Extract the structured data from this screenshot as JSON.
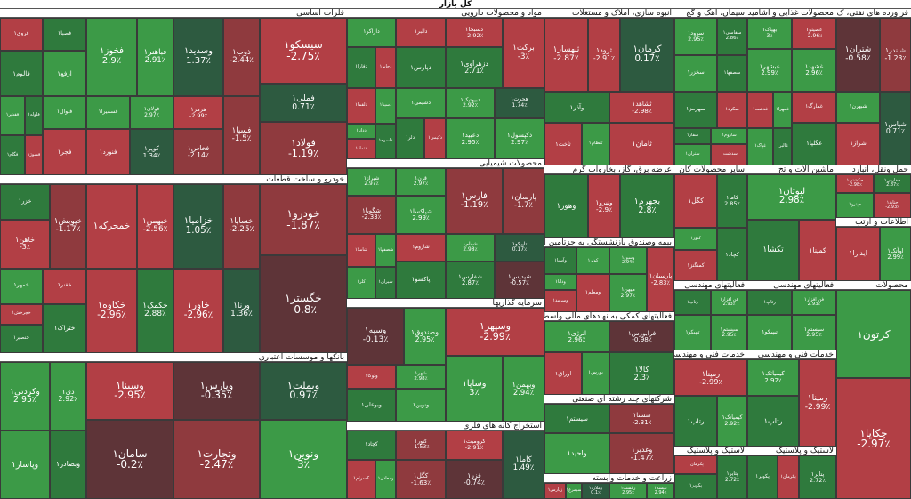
{
  "title": "کل بازار",
  "colors": {
    "neg3": "#5e3438",
    "neg2": "#8f3a3e",
    "neg1": "#b23f45",
    "pos1": "#3c9a47",
    "pos2": "#2f7a3d",
    "pos3": "#2d5a40",
    "bright_pos": "#35b64a",
    "neutral": "#555555",
    "header_bg": "#ffffff",
    "background": "#1c1c1c"
  },
  "chart_data": {
    "type": "treemap",
    "title": "کل بازار",
    "sectors": [
      {
        "name": "فلزات اساسی",
        "items": [
          {
            "n": "سیسکو۱",
            "v": -2.75
          },
          {
            "n": "فملی۱",
            "v": 0.71
          },
          {
            "n": "فولاد۱",
            "v": -1.19
          },
          {
            "n": "ذوب۱",
            "v": -2.44
          },
          {
            "n": "وسدید۱",
            "v": 1.37
          },
          {
            "n": "فسپا۱",
            "v": -1.5
          },
          {
            "n": "هرمز۱",
            "v": -2.99
          },
          {
            "n": "فخاس۱",
            "v": -2.14
          },
          {
            "n": "فباهنر۱",
            "v": 2.91
          },
          {
            "n": "فخوز۱",
            "v": 2.9
          },
          {
            "n": "فولای۱",
            "v": 2.97
          },
          {
            "n": "کویر۱",
            "v": 1.34
          },
          {
            "n": "فسمیرا۱"
          },
          {
            "n": "فنورد۱"
          },
          {
            "n": "فصبا۱"
          },
          {
            "n": "ارفع۱"
          },
          {
            "n": "فروی۱"
          },
          {
            "n": "فالوم۱"
          },
          {
            "n": "فنوال۱"
          },
          {
            "n": "فجر۱"
          },
          {
            "n": "فلوله۱"
          },
          {
            "n": "فقدیر۱"
          },
          {
            "n": "فسوژ۱"
          },
          {
            "n": "فگام۱"
          }
        ]
      },
      {
        "name": "مواد و محصولات دارویی",
        "items": [
          {
            "n": "برکت۱",
            "v": -3
          },
          {
            "n": "دسبحا۱",
            "v": -2.92
          },
          {
            "n": "دزهراوی۱",
            "v": 2.71
          },
          {
            "n": "هجرت۱",
            "v": 1.74
          },
          {
            "n": "دکپسول۱",
            "v": 2.97
          },
          {
            "n": "دبیوتیک۱",
            "v": 2.92
          },
          {
            "n": "دعبید۱",
            "v": 2.95
          },
          {
            "n": "دالبر۱"
          },
          {
            "n": "دپارس۱"
          },
          {
            "n": "داراکر۱"
          },
          {
            "n": "دجابر۱"
          },
          {
            "n": "دفارا۱"
          },
          {
            "n": "دشیمی۱"
          },
          {
            "n": "دکیمی۱"
          },
          {
            "n": "دلر۱"
          },
          {
            "n": "دسینا۱"
          },
          {
            "n": "دلقما۱"
          },
          {
            "n": "داسوه۱"
          },
          {
            "n": "ددانا۱"
          },
          {
            "n": "دتماد۱"
          }
        ]
      },
      {
        "name": "انبوه سازی، املاک و مستغلات",
        "items": [
          {
            "n": "کرمان۱",
            "v": 0.17
          },
          {
            "n": "ثرود۱",
            "v": -2.91
          },
          {
            "n": "ثبهساز۱",
            "v": -2.87
          },
          {
            "n": "ثشاهد۱",
            "v": -2.98
          },
          {
            "n": "ثامان۱"
          },
          {
            "n": "وآذر۱"
          },
          {
            "n": "ثنظام۱"
          },
          {
            "n": "ثاخت۱"
          }
        ]
      },
      {
        "name": "سیمان، آهک و گچ",
        "items": [
          {
            "n": "سفاسی۱",
            "v": 2.86
          },
          {
            "n": "سرود۱",
            "v": 2.95
          },
          {
            "n": "سصفها۱"
          },
          {
            "n": "سخزر۱"
          },
          {
            "n": "سکرد۱"
          },
          {
            "n": "سهرمز۱"
          },
          {
            "n": "ساروم۱"
          },
          {
            "n": "سدشت۱"
          },
          {
            "n": "سفار۱"
          },
          {
            "n": "ستران۱"
          }
        ]
      },
      {
        "name": "محصولات غذایی و آشامیدنی",
        "items": [
          {
            "n": "غصینو۱",
            "v": -2.96
          },
          {
            "n": "غشهد۱",
            "v": 2.96
          },
          {
            "n": "بهپاک۱",
            "v": 3
          },
          {
            "n": "غبشهر۱",
            "v": 2.99
          },
          {
            "n": "غمارگ۱"
          },
          {
            "n": "غگلپا۱"
          },
          {
            "n": "غمهرا۱"
          },
          {
            "n": "غدشت۱"
          },
          {
            "n": "غالبر۱"
          },
          {
            "n": "غپاک۱"
          }
        ]
      },
      {
        "name": "فراورده های نفتی، ک",
        "items": [
          {
            "n": "شبندر۱",
            "v": -1.23
          },
          {
            "n": "شتران۱",
            "v": -0.58
          },
          {
            "n": "شپاس۱",
            "v": 0.71
          },
          {
            "n": "شبهرن۱"
          },
          {
            "n": "شراز۱"
          }
        ]
      },
      {
        "name": "خودرو و ساخت قطعات",
        "items": [
          {
            "n": "خودرو۱",
            "v": -1.87
          },
          {
            "n": "خگستر۱",
            "v": -0.8
          },
          {
            "n": "خساپا۱",
            "v": -2.25
          },
          {
            "n": "خزامیا۱",
            "v": 1.05
          },
          {
            "n": "ورنا۱",
            "v": 1.36
          },
          {
            "n": "خاور۱",
            "v": -2.96
          },
          {
            "n": "خبهمن۱",
            "v": -2.56
          },
          {
            "n": "خمحرکه۱"
          },
          {
            "n": "خکمک۱",
            "v": 2.88
          },
          {
            "n": "خکاوه۱",
            "v": -2.96
          },
          {
            "n": "خپویش۱",
            "v": -1.17
          },
          {
            "n": "خزر۱"
          },
          {
            "n": "خاهن۱",
            "v": -3
          },
          {
            "n": "خفنر۱"
          },
          {
            "n": "ختراک۱"
          },
          {
            "n": "خمهر۱"
          },
          {
            "n": "خچرخش۱"
          },
          {
            "n": "خنصیر۱"
          }
        ]
      },
      {
        "name": "محصولات شیمیایی",
        "items": [
          {
            "n": "پارسان۱",
            "v": -1.7
          },
          {
            "n": "فارس۱",
            "v": -1.19
          },
          {
            "n": "تاپیکو۱",
            "v": 0.17
          },
          {
            "n": "شپدیس۱",
            "v": -0.57
          },
          {
            "n": "شفام۱",
            "v": 2.98
          },
          {
            "n": "شفارس۱",
            "v": 2.87
          },
          {
            "n": "قرن۱",
            "v": 2.97
          },
          {
            "n": "شپاکسا۱",
            "v": 2.99
          },
          {
            "n": "شیراز۱",
            "v": 2.97
          },
          {
            "n": "شگویا۱",
            "v": -2.33
          },
          {
            "n": "شاروم۱"
          },
          {
            "n": "پاکشو۱"
          },
          {
            "n": "شصفها۱"
          },
          {
            "n": "شاملا۱"
          },
          {
            "n": "شیران۱"
          },
          {
            "n": "کلر۱"
          }
        ]
      },
      {
        "name": "عرضه برق، گاز، بخاروآب گرم",
        "items": [
          {
            "n": "بجهرم۱",
            "v": 2.8
          },
          {
            "n": "ونیرو۱",
            "v": -2.9
          },
          {
            "n": "وهور۱"
          }
        ]
      },
      {
        "name": "سایر محصولات کان",
        "items": [
          {
            "n": "کاما۱",
            "v": 2.85
          },
          {
            "n": "کگل۱"
          },
          {
            "n": "کچاد۱"
          },
          {
            "n": "کنور۱"
          },
          {
            "n": "کمنگنز۱"
          }
        ]
      },
      {
        "name": "ماشین آلات و تج",
        "items": [
          {
            "n": "لبوتان۱",
            "v": 2.98
          },
          {
            "n": "کمینا۱"
          },
          {
            "n": "تکشا۱"
          }
        ]
      },
      {
        "name": "حمل ونقل، انبارد",
        "items": [
          {
            "n": "حفارس۱",
            "v": 2.87
          },
          {
            "n": "حتاید۱",
            "v": -2.93
          },
          {
            "n": "حکشتی۱",
            "v": -2.98
          },
          {
            "n": "حپترو۱"
          }
        ]
      },
      {
        "name": "اطلاعات و ارتب",
        "items": [
          {
            "n": "اوآتک۱",
            "v": 2.99
          },
          {
            "n": "ایدارا۱"
          }
        ]
      },
      {
        "name": "سرمایه گذاریها",
        "items": [
          {
            "n": "وسپهر۱",
            "v": -2.99
          },
          {
            "n": "وبهمن۱",
            "v": 2.94
          },
          {
            "n": "وساپا۱",
            "v": 3
          },
          {
            "n": "وصندوق۱",
            "v": 2.95
          },
          {
            "n": "وسپه۱",
            "v": -0.13
          },
          {
            "n": "شهر۱",
            "v": 2.98
          },
          {
            "n": "ونوین۱"
          },
          {
            "n": "وتوکا۱"
          },
          {
            "n": "وبوعلی۱"
          }
        ]
      },
      {
        "name": "بیمه وصندوق بازنشستگی به جزتامین اج",
        "items": [
          {
            "n": "پارسیان۱",
            "v": -2.83
          },
          {
            "n": "وسین۱",
            "v": 2.94
          },
          {
            "n": "میهن۱",
            "v": 2.97
          },
          {
            "n": "کوثر۱"
          },
          {
            "n": "ومعلم۱"
          },
          {
            "n": "وآسیا۱"
          },
          {
            "n": "ودانا۱"
          },
          {
            "n": "وسرمد۱"
          }
        ]
      },
      {
        "name": "فعالیتهای کمکی به نهادهای مالی واسط",
        "items": [
          {
            "n": "فرابورس۱",
            "v": -0.98
          },
          {
            "n": "کالا۱",
            "v": 2.3
          },
          {
            "n": "انرژی۱",
            "v": 2.96
          },
          {
            "n": "بورس۱"
          },
          {
            "n": "اوراق۱"
          }
        ]
      },
      {
        "name": "بانکها و موسسات اعتباری",
        "items": [
          {
            "n": "وبملت۱",
            "v": 0.97
          },
          {
            "n": "ونوین۱",
            "v": 3
          },
          {
            "n": "وپارس۱",
            "v": -0.35
          },
          {
            "n": "وتجارت۱",
            "v": -2.47
          },
          {
            "n": "وسینا۱",
            "v": -2.95
          },
          {
            "n": "سامان۱",
            "v": -0.2
          },
          {
            "n": "دی۱",
            "v": 2.92
          },
          {
            "n": "وکردتی۱",
            "v": 2.95
          },
          {
            "n": "وبصادر۱"
          },
          {
            "n": "وپاسار۱"
          }
        ]
      },
      {
        "name": "استخراج کانه های فلزی",
        "items": [
          {
            "n": "کاما۱",
            "v": 1.49
          },
          {
            "n": "کروميت۱",
            "v": -2.91
          },
          {
            "n": "فزر۱",
            "v": -0.74
          },
          {
            "n": "کنور۱",
            "v": -1.53
          },
          {
            "n": "کگل۱",
            "v": -1.63
          },
          {
            "n": "کچاد۱"
          },
          {
            "n": "ومعادن۱"
          },
          {
            "n": "کسرام۱"
          }
        ]
      },
      {
        "name": "شرکتهای چند رشته ای صنعتی",
        "items": [
          {
            "n": "شستا۱",
            "v": -2.31
          },
          {
            "n": "وغدیر۱",
            "v": -1.47
          },
          {
            "n": "سیستم۱"
          },
          {
            "n": "واحید۱"
          }
        ]
      },
      {
        "name": "زراعت و خدمات وابسته",
        "items": [
          {
            "n": "تلیسه۱",
            "v": 2.94
          },
          {
            "n": "زکشت۱",
            "v": 2.95
          },
          {
            "n": "زملارد۱",
            "v": 0.1
          },
          {
            "n": "سیمرغ۱"
          },
          {
            "n": "زپارس۱"
          }
        ]
      },
      {
        "name": "فعالیتهای مهندسی",
        "items": [
          {
            "n": "فن افزار۱",
            "v": 2.93
          },
          {
            "n": "سیستم۱",
            "v": 2.95
          },
          {
            "n": "رتاپ۱"
          },
          {
            "n": "تیپیکو۱"
          }
        ]
      },
      {
        "name": "خدمات فنی و مهندسی",
        "items": [
          {
            "n": "رمپنا۱",
            "v": -2.99
          },
          {
            "n": "کیمیاتک۱",
            "v": 2.92
          },
          {
            "n": "رتاپ۱"
          }
        ]
      },
      {
        "name": "لاستیک و پلاستیک",
        "items": [
          {
            "n": "پتایر۱",
            "v": 2.72
          },
          {
            "n": "پکرمان۱"
          },
          {
            "n": "پکویر۱"
          }
        ]
      },
      {
        "name": "محصولات",
        "items": [
          {
            "n": "کرتون۱"
          },
          {
            "n": "چکاپا۱",
            "v": -2.97
          }
        ]
      }
    ]
  }
}
